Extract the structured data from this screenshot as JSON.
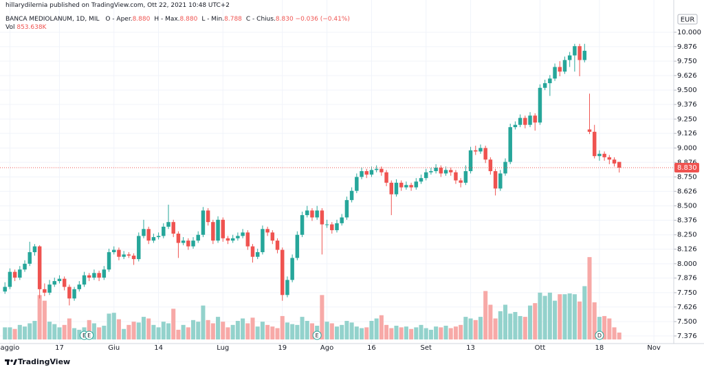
{
  "header": {
    "publisher": "hillarydilernia published on TradingView.com, Ott 22, 2021 10:48 UTC+2"
  },
  "chart_data": {
    "type": "candlestick",
    "symbol": "BANCA MEDIOLANUM, 1D, MIL",
    "legend": [
      {
        "label": "O - Aper.",
        "value": "8.880"
      },
      {
        "label": "H - Max.",
        "value": "8.880"
      },
      {
        "label": "L - Min.",
        "value": "8.788"
      },
      {
        "label": "C - Chius.",
        "value": "8.830"
      }
    ],
    "change": "−0.036 (−0.41%)",
    "volume_label": "Vol",
    "volume_value": "853.638K",
    "currency": "EUR",
    "last_price": "8.830",
    "up_color": "#26a69a",
    "down_color": "#ef5350",
    "up_volume_color": "#93d2cc",
    "down_volume_color": "#f7a9a7",
    "grid": true,
    "ylim": [
      7.328,
      10.16
    ],
    "yticks": [
      7.376,
      {
        "value": 7.5,
        "label": "7.500"
      },
      7.626,
      {
        "value": 7.75,
        "label": "7.750"
      },
      7.876,
      {
        "value": 8,
        "label": "8.000"
      },
      8.126,
      {
        "value": 8.25,
        "label": "8.250"
      },
      8.376,
      {
        "value": 8.5,
        "label": "8.500"
      },
      8.626,
      {
        "value": 8.75,
        "label": "8.750"
      },
      8.876,
      {
        "value": 9,
        "label": "9.000"
      },
      9.126,
      {
        "value": 9.25,
        "label": "9.250"
      },
      9.376,
      {
        "value": 9.5,
        "label": "9.500"
      },
      9.626,
      {
        "value": 9.75,
        "label": "9.750"
      },
      9.876,
      {
        "value": 10,
        "label": "10.000"
      }
    ],
    "y2lim": [
      0,
      40000
    ],
    "xlim": [
      -1,
      135
    ],
    "xticks": [
      {
        "value": 1,
        "label": "aggio"
      },
      {
        "value": 11,
        "label": "17"
      },
      {
        "value": 22,
        "label": "Giu"
      },
      {
        "value": 31,
        "label": "14"
      },
      {
        "value": 44,
        "label": "Lug"
      },
      {
        "value": 56,
        "label": "19"
      },
      {
        "value": 65,
        "label": "Ago"
      },
      {
        "value": 74,
        "label": "16"
      },
      {
        "value": 85,
        "label": "Set"
      },
      {
        "value": 94,
        "label": "13"
      },
      {
        "value": 108,
        "label": "Ott"
      },
      {
        "value": 120,
        "label": "18"
      },
      {
        "value": 131,
        "label": "Nov"
      }
    ],
    "events": [
      {
        "x": 16,
        "label": "E"
      },
      {
        "x": 17,
        "label": "E"
      },
      {
        "x": 63,
        "label": "E"
      },
      {
        "x": 120,
        "label": "D"
      }
    ],
    "ohlc": [
      [
        7.76,
        7.84,
        7.74,
        7.8
      ],
      [
        7.8,
        7.96,
        7.78,
        7.93
      ],
      [
        7.93,
        7.95,
        7.85,
        7.88
      ],
      [
        7.88,
        7.98,
        7.86,
        7.95
      ],
      [
        7.95,
        8.03,
        7.93,
        8.0
      ],
      [
        8.0,
        8.19,
        7.98,
        8.1
      ],
      [
        8.1,
        8.17,
        8.07,
        8.15
      ],
      [
        8.15,
        8.16,
        7.7,
        7.78
      ],
      [
        7.78,
        7.83,
        7.72,
        7.75
      ],
      [
        7.75,
        7.86,
        7.73,
        7.82
      ],
      [
        7.82,
        7.88,
        7.8,
        7.85
      ],
      [
        7.85,
        7.9,
        7.83,
        7.87
      ],
      [
        7.87,
        7.89,
        7.77,
        7.8
      ],
      [
        7.8,
        7.82,
        7.64,
        7.7
      ],
      [
        7.7,
        7.8,
        7.68,
        7.78
      ],
      [
        7.78,
        7.85,
        7.76,
        7.82
      ],
      [
        7.82,
        7.93,
        7.8,
        7.9
      ],
      [
        7.9,
        7.92,
        7.85,
        7.88
      ],
      [
        7.88,
        7.95,
        7.86,
        7.92
      ],
      [
        7.92,
        7.94,
        7.85,
        7.88
      ],
      [
        7.88,
        7.98,
        7.86,
        7.95
      ],
      [
        7.95,
        8.13,
        7.93,
        8.1
      ],
      [
        8.1,
        8.15,
        8.08,
        8.12
      ],
      [
        8.12,
        8.14,
        8.03,
        8.06
      ],
      [
        8.06,
        8.11,
        8.04,
        8.08
      ],
      [
        8.08,
        8.1,
        8.05,
        8.07
      ],
      [
        8.07,
        8.09,
        7.99,
        8.04
      ],
      [
        8.04,
        8.27,
        8.02,
        8.24
      ],
      [
        8.24,
        8.38,
        8.22,
        8.3
      ],
      [
        8.3,
        8.32,
        8.17,
        8.2
      ],
      [
        8.2,
        8.26,
        8.18,
        8.23
      ],
      [
        8.23,
        8.27,
        8.21,
        8.24
      ],
      [
        8.24,
        8.35,
        8.22,
        8.32
      ],
      [
        8.32,
        8.51,
        8.3,
        8.36
      ],
      [
        8.36,
        8.38,
        8.23,
        8.26
      ],
      [
        8.26,
        8.28,
        8.05,
        8.18
      ],
      [
        8.18,
        8.23,
        8.16,
        8.2
      ],
      [
        8.2,
        8.22,
        8.12,
        8.15
      ],
      [
        8.15,
        8.23,
        8.13,
        8.2
      ],
      [
        8.2,
        8.28,
        8.18,
        8.25
      ],
      [
        8.25,
        8.49,
        8.23,
        8.46
      ],
      [
        8.46,
        8.48,
        8.33,
        8.36
      ],
      [
        8.36,
        8.38,
        8.17,
        8.2
      ],
      [
        8.2,
        8.41,
        8.18,
        8.38
      ],
      [
        8.38,
        8.4,
        8.19,
        8.22
      ],
      [
        8.22,
        8.24,
        8.17,
        8.2
      ],
      [
        8.2,
        8.25,
        8.18,
        8.22
      ],
      [
        8.22,
        8.27,
        8.2,
        8.24
      ],
      [
        8.24,
        8.3,
        8.22,
        8.27
      ],
      [
        8.27,
        8.29,
        8.12,
        8.15
      ],
      [
        8.15,
        8.17,
        8.01,
        8.06
      ],
      [
        8.06,
        8.13,
        8.04,
        8.1
      ],
      [
        8.1,
        8.33,
        8.08,
        8.3
      ],
      [
        8.3,
        8.32,
        8.24,
        8.27
      ],
      [
        8.27,
        8.29,
        8.17,
        8.2
      ],
      [
        8.2,
        8.22,
        8.09,
        8.12
      ],
      [
        8.12,
        8.14,
        7.68,
        7.73
      ],
      [
        7.73,
        7.89,
        7.71,
        7.86
      ],
      [
        7.86,
        8.08,
        7.84,
        8.05
      ],
      [
        8.05,
        8.28,
        8.03,
        8.25
      ],
      [
        8.25,
        8.45,
        8.23,
        8.42
      ],
      [
        8.42,
        8.5,
        8.4,
        8.46
      ],
      [
        8.46,
        8.48,
        8.37,
        8.4
      ],
      [
        8.4,
        8.5,
        8.38,
        8.46
      ],
      [
        8.46,
        8.48,
        8.08,
        8.34
      ],
      [
        8.34,
        8.38,
        8.31,
        8.34
      ],
      [
        8.34,
        8.36,
        8.26,
        8.29
      ],
      [
        8.29,
        8.38,
        8.27,
        8.35
      ],
      [
        8.35,
        8.43,
        8.33,
        8.4
      ],
      [
        8.4,
        8.58,
        8.38,
        8.55
      ],
      [
        8.55,
        8.66,
        8.53,
        8.63
      ],
      [
        8.63,
        8.78,
        8.61,
        8.75
      ],
      [
        8.75,
        8.83,
        8.73,
        8.8
      ],
      [
        8.8,
        8.82,
        8.74,
        8.77
      ],
      [
        8.77,
        8.84,
        8.75,
        8.81
      ],
      [
        8.81,
        8.85,
        8.79,
        8.82
      ],
      [
        8.82,
        8.84,
        8.76,
        8.79
      ],
      [
        8.79,
        8.81,
        8.67,
        8.7
      ],
      [
        8.7,
        8.72,
        8.42,
        8.6
      ],
      [
        8.6,
        8.73,
        8.58,
        8.7
      ],
      [
        8.7,
        8.72,
        8.63,
        8.66
      ],
      [
        8.66,
        8.71,
        8.64,
        8.68
      ],
      [
        8.68,
        8.7,
        8.63,
        8.66
      ],
      [
        8.66,
        8.74,
        8.64,
        8.71
      ],
      [
        8.71,
        8.77,
        8.69,
        8.74
      ],
      [
        8.74,
        8.82,
        8.72,
        8.79
      ],
      [
        8.79,
        8.83,
        8.77,
        8.8
      ],
      [
        8.8,
        8.86,
        8.78,
        8.83
      ],
      [
        8.83,
        8.85,
        8.75,
        8.78
      ],
      [
        8.78,
        8.84,
        8.76,
        8.81
      ],
      [
        8.81,
        8.83,
        8.76,
        8.79
      ],
      [
        8.79,
        8.81,
        8.69,
        8.72
      ],
      [
        8.72,
        8.74,
        8.66,
        8.7
      ],
      [
        8.7,
        8.85,
        8.68,
        8.8
      ],
      [
        8.8,
        9.01,
        8.78,
        8.98
      ],
      [
        8.98,
        9.02,
        8.94,
        8.97
      ],
      [
        8.97,
        9.03,
        8.95,
        9.0
      ],
      [
        9.0,
        9.02,
        8.87,
        8.9
      ],
      [
        8.9,
        8.92,
        8.77,
        8.8
      ],
      [
        8.8,
        8.82,
        8.59,
        8.65
      ],
      [
        8.65,
        8.81,
        8.63,
        8.78
      ],
      [
        8.78,
        8.91,
        8.76,
        8.88
      ],
      [
        8.88,
        9.21,
        8.86,
        9.18
      ],
      [
        9.18,
        9.23,
        9.16,
        9.2
      ],
      [
        9.2,
        9.29,
        9.18,
        9.26
      ],
      [
        9.26,
        9.28,
        9.17,
        9.2
      ],
      [
        9.2,
        9.31,
        9.18,
        9.28
      ],
      [
        9.28,
        9.3,
        9.15,
        9.22
      ],
      [
        9.22,
        9.55,
        9.2,
        9.52
      ],
      [
        9.52,
        9.59,
        9.5,
        9.56
      ],
      [
        9.56,
        9.63,
        9.45,
        9.6
      ],
      [
        9.6,
        9.73,
        9.58,
        9.7
      ],
      [
        9.7,
        9.75,
        9.62,
        9.66
      ],
      [
        9.66,
        9.79,
        9.64,
        9.76
      ],
      [
        9.76,
        9.83,
        9.7,
        9.8
      ],
      [
        9.8,
        9.9,
        9.66,
        9.88
      ],
      [
        9.88,
        9.9,
        9.62,
        9.76
      ],
      [
        9.76,
        9.9,
        9.74,
        9.84
      ],
      [
        9.16,
        9.47,
        9.12,
        9.14
      ],
      [
        9.14,
        9.2,
        8.91,
        8.93
      ],
      [
        8.93,
        8.98,
        8.89,
        8.95
      ],
      [
        8.95,
        8.97,
        8.89,
        8.92
      ],
      [
        8.92,
        8.94,
        8.86,
        8.9
      ],
      [
        8.9,
        8.92,
        8.84,
        8.866
      ],
      [
        8.88,
        8.88,
        8.788,
        8.83
      ]
    ],
    "volume": [
      1500,
      1500,
      1300,
      1800,
      1600,
      2000,
      2300,
      5500,
      4800,
      2200,
      1900,
      1500,
      1800,
      2600,
      1400,
      1200,
      1500,
      2400,
      2000,
      1500,
      1700,
      3200,
      3300,
      2500,
      1300,
      1800,
      2200,
      2100,
      2800,
      2600,
      1800,
      1500,
      2200,
      2000,
      3800,
      1200,
      1800,
      1500,
      2400,
      2200,
      4200,
      2400,
      2000,
      2800,
      2200,
      1500,
      1800,
      2300,
      2600,
      2000,
      2700,
      1600,
      2200,
      1800,
      1600,
      1400,
      2900,
      2100,
      1900,
      1800,
      2800,
      2300,
      2000,
      1700,
      5500,
      2200,
      2000,
      1600,
      1800,
      2300,
      2100,
      1600,
      1400,
      1500,
      2300,
      2600,
      3000,
      1800,
      1400,
      1700,
      1500,
      1600,
      1300,
      1500,
      1800,
      1400,
      1200,
      1600,
      1500,
      1700,
      1400,
      1600,
      1800,
      2800,
      2600,
      2400,
      2800,
      6000,
      4300,
      2600,
      3500,
      4300,
      3200,
      3400,
      2900,
      2800,
      4200,
      4500,
      5800,
      5400,
      5800,
      4800,
      5600,
      5600,
      5700,
      5600,
      4700,
      6600,
      10200,
      4600,
      2800,
      2900,
      2600,
      1500,
      853.638
    ]
  },
  "footer": {
    "brand": "TradingView"
  }
}
